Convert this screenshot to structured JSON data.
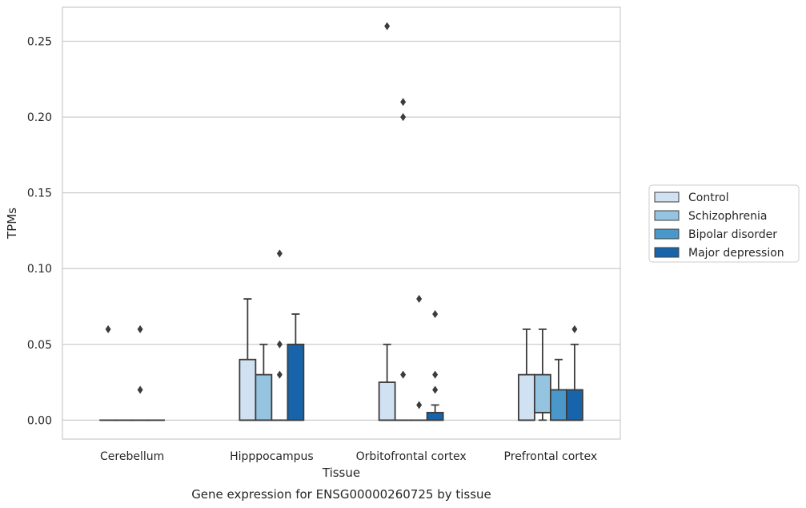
{
  "chart_data": {
    "type": "box",
    "title": "Gene expression for ENSG00000260725 by tissue",
    "xlabel": "Tissue",
    "ylabel": "TPMs",
    "ylim": [
      -0.0125,
      0.2725
    ],
    "yticks": [
      "0.00",
      "0.05",
      "0.10",
      "0.15",
      "0.20",
      "0.25"
    ],
    "ytick_values": [
      0,
      0.05,
      0.1,
      0.15,
      0.2,
      0.25
    ],
    "grid": true,
    "legend_placement": "right",
    "categories": [
      "Cerebellum",
      "Hipppocampus",
      "Orbitofrontal cortex",
      "Prefrontal cortex"
    ],
    "series": [
      {
        "name": "Control",
        "color": "#d0e1f2",
        "boxes": [
          {
            "q1": 0,
            "median": 0,
            "q3": 0,
            "whislo": 0,
            "whishi": 0,
            "fliers": [
              0.06
            ]
          },
          {
            "q1": 0,
            "median": 0,
            "q3": 0.04,
            "whislo": 0,
            "whishi": 0.08,
            "fliers": []
          },
          {
            "q1": 0,
            "median": 0,
            "q3": 0.025,
            "whislo": 0,
            "whishi": 0.05,
            "fliers": [
              0.26
            ]
          },
          {
            "q1": 0,
            "median": 0,
            "q3": 0.03,
            "whislo": 0,
            "whishi": 0.06,
            "fliers": []
          }
        ]
      },
      {
        "name": "Schizophrenia",
        "color": "#94c4df",
        "boxes": [
          {
            "q1": 0,
            "median": 0,
            "q3": 0,
            "whislo": 0,
            "whishi": 0,
            "fliers": []
          },
          {
            "q1": 0,
            "median": 0,
            "q3": 0.03,
            "whislo": 0,
            "whishi": 0.05,
            "fliers": []
          },
          {
            "q1": 0,
            "median": 0,
            "q3": 0,
            "whislo": 0,
            "whishi": 0,
            "fliers": [
              0.03,
              0.2,
              0.21
            ]
          },
          {
            "q1": 0.005,
            "median": 0.005,
            "q3": 0.03,
            "whislo": 0,
            "whishi": 0.06,
            "fliers": []
          }
        ]
      },
      {
        "name": "Bipolar disorder",
        "color": "#4a98c9",
        "boxes": [
          {
            "q1": 0,
            "median": 0,
            "q3": 0,
            "whislo": 0,
            "whishi": 0,
            "fliers": [
              0.02,
              0.06
            ]
          },
          {
            "q1": 0,
            "median": 0,
            "q3": 0,
            "whislo": 0,
            "whishi": 0,
            "fliers": [
              0.03,
              0.05,
              0.11
            ]
          },
          {
            "q1": 0,
            "median": 0,
            "q3": 0,
            "whislo": 0,
            "whishi": 0,
            "fliers": [
              0.01,
              0.08
            ]
          },
          {
            "q1": 0,
            "median": 0,
            "q3": 0.02,
            "whislo": 0,
            "whishi": 0.04,
            "fliers": []
          }
        ]
      },
      {
        "name": "Major depression",
        "color": "#1764ab",
        "boxes": [
          {
            "q1": 0,
            "median": 0,
            "q3": 0,
            "whislo": 0,
            "whishi": 0,
            "fliers": []
          },
          {
            "q1": 0,
            "median": 0,
            "q3": 0.05,
            "whislo": 0,
            "whishi": 0.07,
            "fliers": []
          },
          {
            "q1": 0,
            "median": 0,
            "q3": 0.005,
            "whislo": 0,
            "whishi": 0.01,
            "fliers": [
              0.02,
              0.03,
              0.07
            ]
          },
          {
            "q1": 0,
            "median": 0,
            "q3": 0.02,
            "whislo": 0,
            "whishi": 0.05,
            "fliers": [
              0.06
            ]
          }
        ]
      }
    ]
  }
}
